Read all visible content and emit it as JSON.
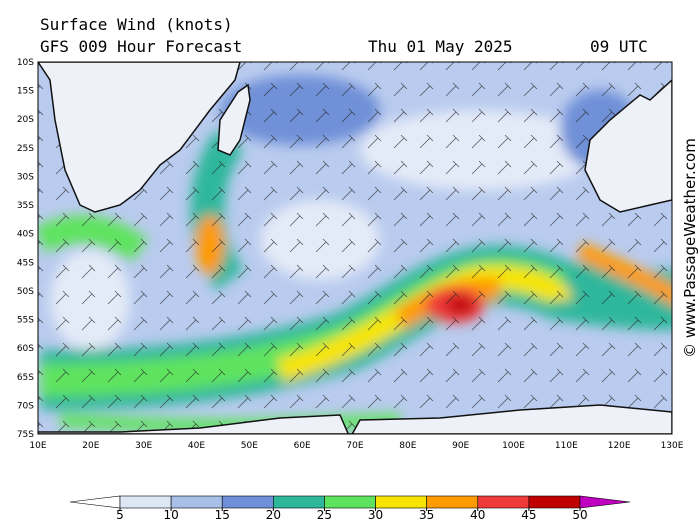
{
  "header": {
    "title": "Surface Wind (knots)",
    "subtitle": "GFS 009 Hour Forecast",
    "date": "Thu 01 May 2025",
    "time": "09 UTC"
  },
  "map": {
    "lat_labels": [
      "10S",
      "15S",
      "20S",
      "25S",
      "30S",
      "35S",
      "40S",
      "45S",
      "50S",
      "55S",
      "60S",
      "65S",
      "70S",
      "75S"
    ],
    "lon_labels": [
      "10E",
      "20E",
      "30E",
      "40E",
      "50E",
      "60E",
      "70E",
      "80E",
      "90E",
      "100E",
      "110E",
      "120E",
      "130E"
    ]
  },
  "colorbar": {
    "ticks": [
      5,
      10,
      15,
      20,
      25,
      30,
      35,
      40,
      45,
      50
    ],
    "colors": [
      "#ffffff",
      "#dde6f5",
      "#a8bfe8",
      "#6f90d8",
      "#2fb79c",
      "#5fe35f",
      "#f7e400",
      "#ff9a00",
      "#ee3a3a",
      "#c00000",
      "#c000c0"
    ]
  },
  "credit": "© www.PassageWeather.com"
}
